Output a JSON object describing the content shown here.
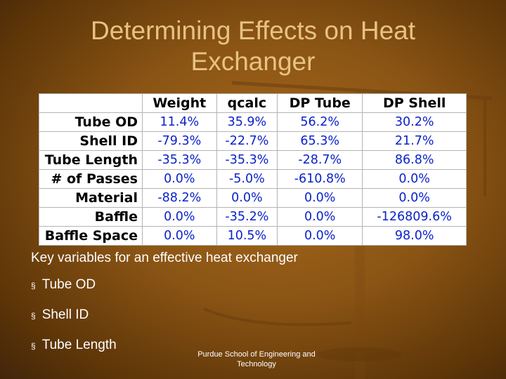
{
  "slide": {
    "title": "Determining Effects on Heat Exchanger",
    "table": {
      "columns": [
        "Weight",
        "qcalc",
        "DP Tube",
        "DP Shell"
      ],
      "rows": [
        {
          "label": "Tube OD",
          "values": [
            "11.4%",
            "35.9%",
            "56.2%",
            "30.2%"
          ]
        },
        {
          "label": "Shell ID",
          "values": [
            "-79.3%",
            "-22.7%",
            "65.3%",
            "21.7%"
          ]
        },
        {
          "label": "Tube Length",
          "values": [
            "-35.3%",
            "-35.3%",
            "-28.7%",
            "86.8%"
          ]
        },
        {
          "label": "# of Passes",
          "values": [
            "0.0%",
            "-5.0%",
            "-610.8%",
            "0.0%"
          ]
        },
        {
          "label": "Material",
          "values": [
            "-88.2%",
            "0.0%",
            "0.0%",
            "0.0%"
          ]
        },
        {
          "label": "Baffle",
          "values": [
            "0.0%",
            "-35.2%",
            "0.0%",
            "-126809.6%"
          ]
        },
        {
          "label": "Baffle Space",
          "values": [
            "0.0%",
            "10.5%",
            "0.0%",
            "98.0%"
          ]
        }
      ]
    },
    "key_label": "Key variables for an effective heat exchanger",
    "bullets": [
      "Tube OD",
      "Shell ID",
      "Tube Length"
    ],
    "bullet_marker": "§",
    "footer": "Purdue School of Engineering and Technology"
  },
  "colors": {
    "title": "#e8c283",
    "background": "#8a5414",
    "table_values": "#0b22c8",
    "body_text": "#ffffff"
  }
}
